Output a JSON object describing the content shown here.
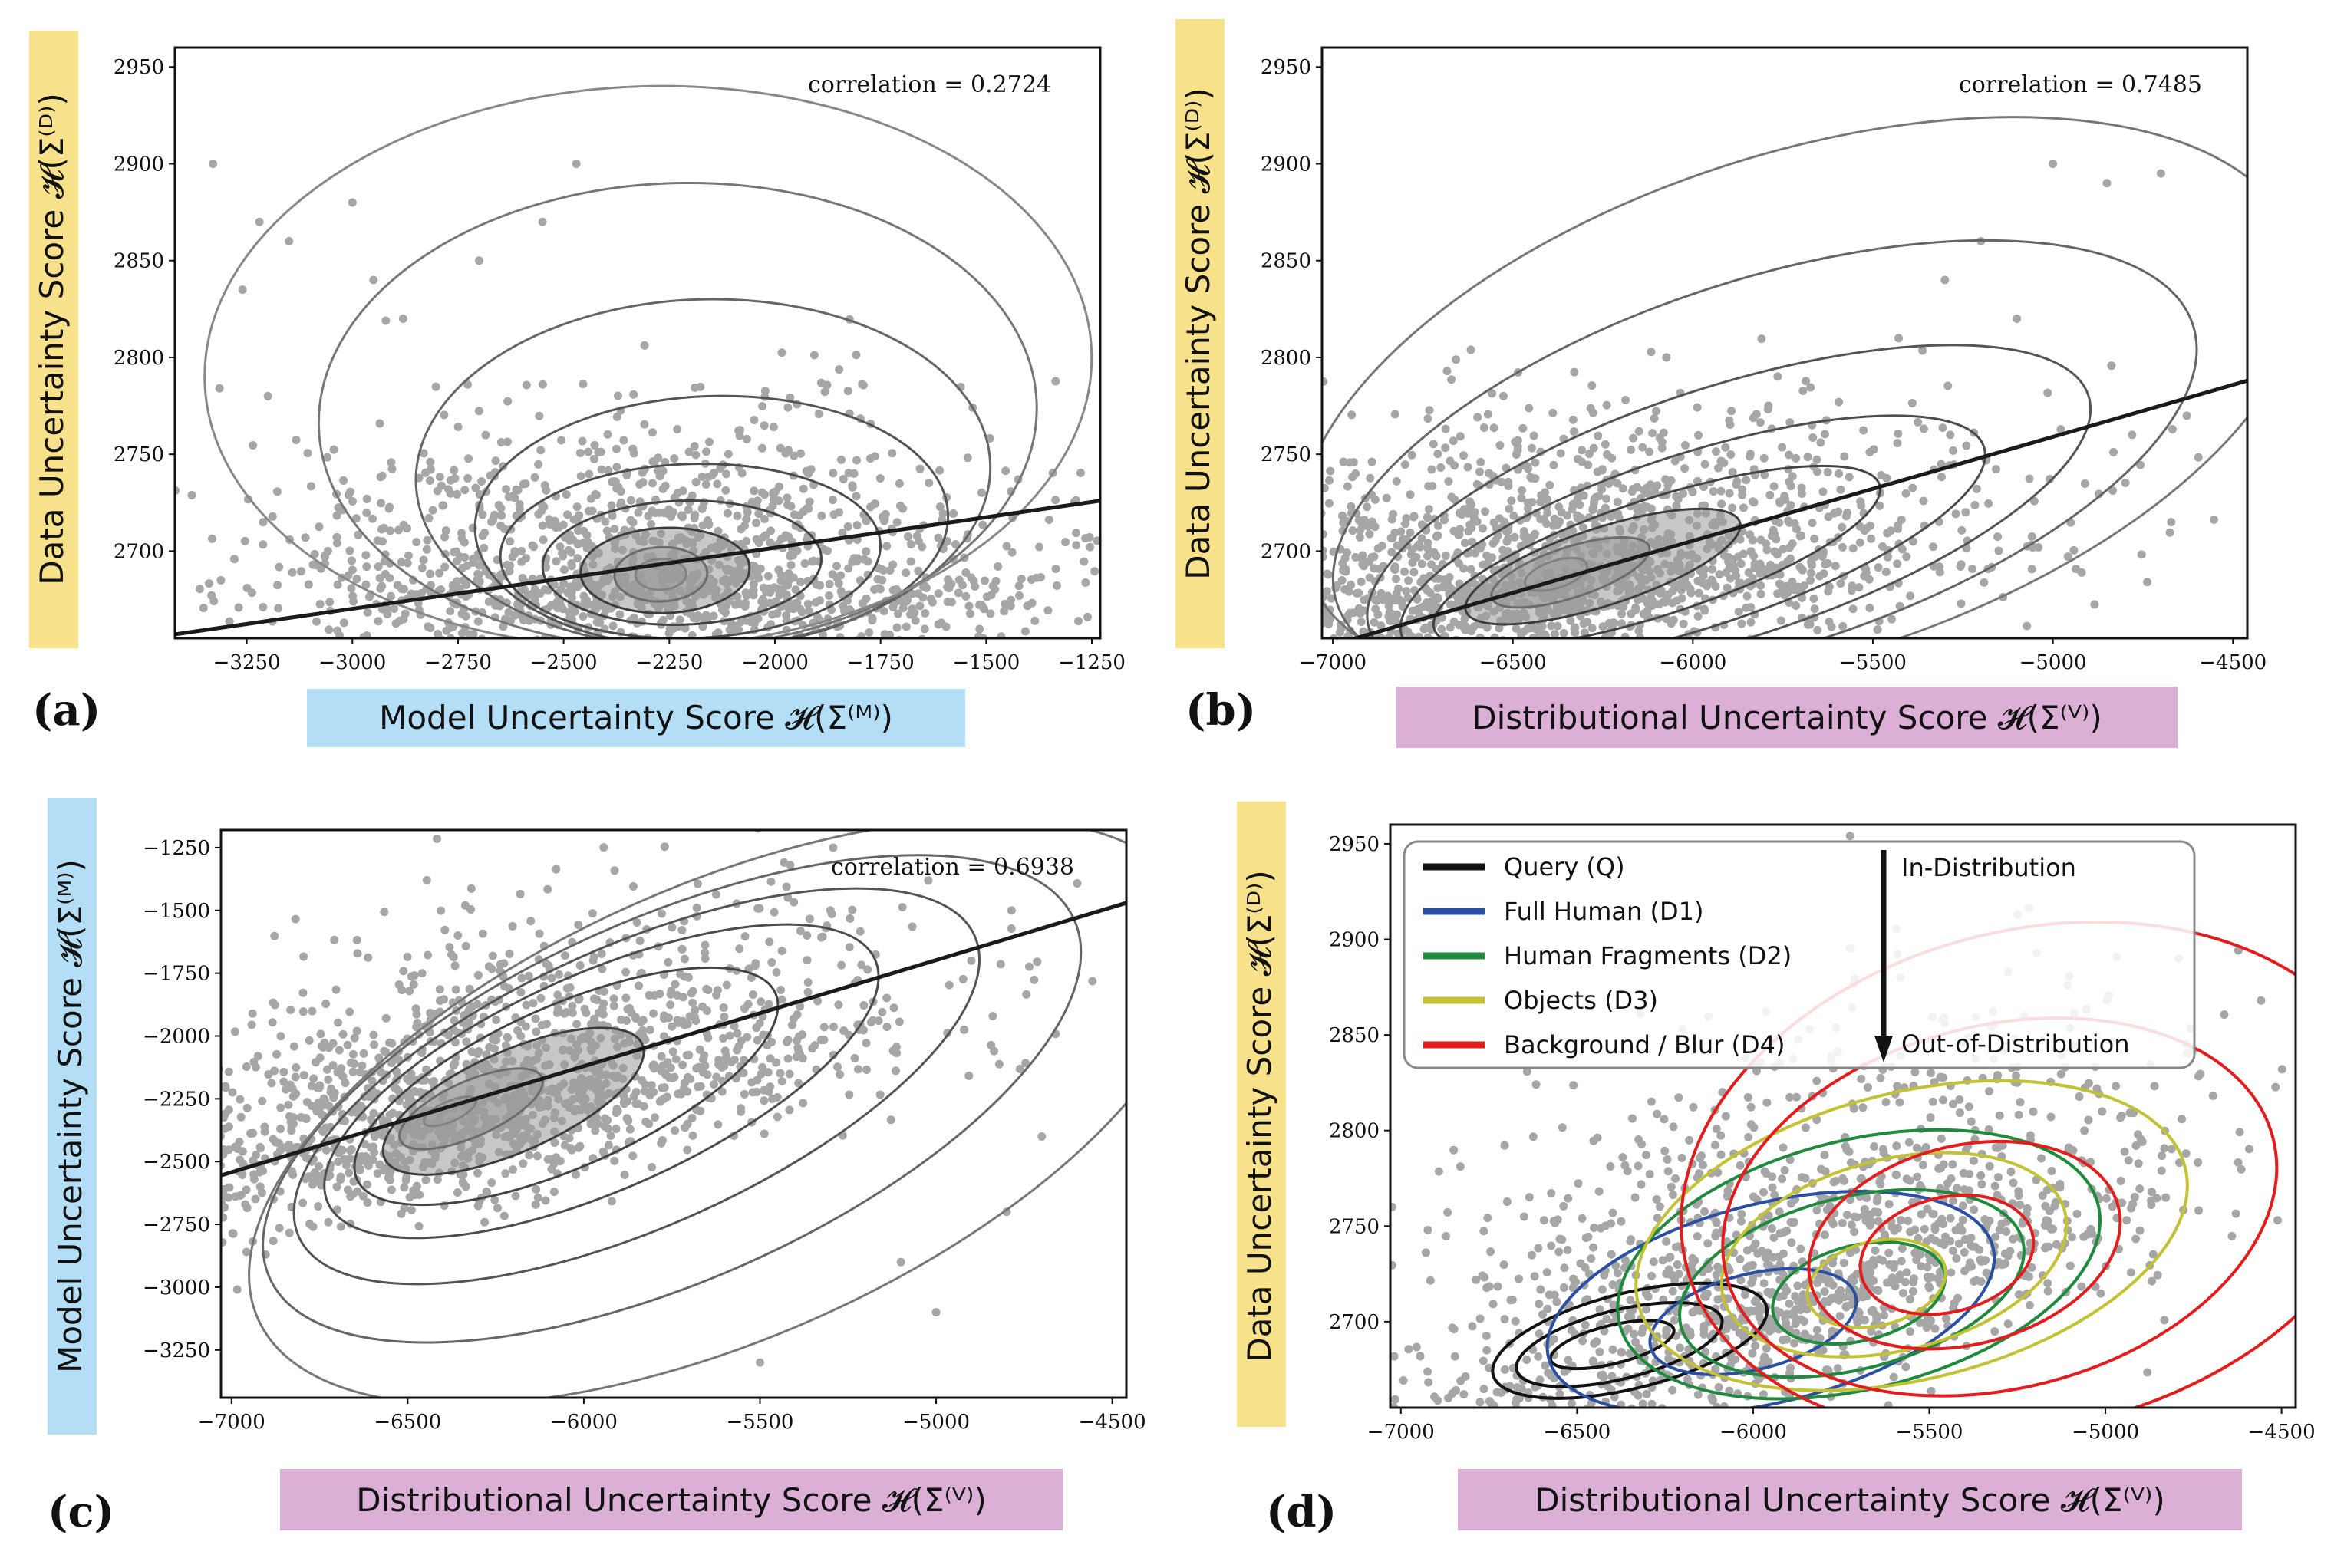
{
  "colors": {
    "model_highlight": "#b3def5",
    "data_highlight": "#f7e18a",
    "dist_highlight": "#dcb0d6",
    "points": "#a6a6a6",
    "fit_line": "#1a1a1a",
    "kde_fill": "#9b9b9b",
    "query": "#111111",
    "full_human": "#2b4fa3",
    "human_fragments": "#1f8a3c",
    "objects": "#c2c234",
    "background_blur": "#e31d1d",
    "background_blur_outer": "#f49a7a"
  },
  "panels": {
    "a": {
      "label": "(a)",
      "xlabel": "Model Uncertainty Score 𝓗(Σ⁽ᴹ⁾)",
      "ylabel": "Data Uncertainty Score 𝓗(Σ⁽ᴰ⁾)",
      "corr": "correlation = 0.2724"
    },
    "b": {
      "label": "(b)",
      "xlabel": "Distributional Uncertainty Score 𝓗(Σ⁽ⱽ⁾)",
      "ylabel": "Data Uncertainty Score 𝓗(Σ⁽ᴰ⁾)",
      "corr": "correlation = 0.7485"
    },
    "c": {
      "label": "(c)",
      "xlabel": "Distributional Uncertainty Score 𝓗(Σ⁽ⱽ⁾)",
      "ylabel": "Model Uncertainty Score 𝓗(Σ⁽ᴹ⁾)",
      "corr": "correlation = 0.6938"
    },
    "d": {
      "label": "(d)",
      "xlabel": "Distributional Uncertainty Score 𝓗(Σ⁽ⱽ⁾)",
      "ylabel": "Data Uncertainty Score 𝓗(Σ⁽ᴰ⁾)"
    }
  },
  "legend": {
    "items": [
      "Query (Q)",
      "Full Human (D1)",
      "Human Fragments (D2)",
      "Objects (D3)",
      "Background / Blur (D4)"
    ],
    "in_dist": "In-Distribution",
    "out_dist": "Out-of-Distribution"
  },
  "chart_data": [
    {
      "id": "a",
      "type": "scatter",
      "xlabel": "Model Uncertainty Score H(Σ(M))",
      "ylabel": "Data Uncertainty Score H(Σ(D))",
      "xlim": [
        -3420,
        -1230
      ],
      "ylim": [
        2655,
        2960
      ],
      "xticks": [
        -3250,
        -3000,
        -2750,
        -2500,
        -2250,
        -2000,
        -1750,
        -1500,
        -1250
      ],
      "yticks": [
        2700,
        2750,
        2800,
        2850,
        2900,
        2950
      ],
      "correlation": 0.2724,
      "fit_line": [
        [
          -3420,
          2657
        ],
        [
          -1230,
          2726
        ]
      ],
      "center": [
        -2270,
        2688
      ],
      "spread": [
        430,
        32
      ],
      "kde_levels": [
        {
          "cx": -2270,
          "cy": 2688,
          "rx": 60,
          "ry": 8
        },
        {
          "cx": -2270,
          "cy": 2688,
          "rx": 110,
          "ry": 14
        },
        {
          "cx": -2260,
          "cy": 2690,
          "rx": 200,
          "ry": 22
        },
        {
          "cx": -2220,
          "cy": 2694,
          "rx": 330,
          "ry": 32
        },
        {
          "cx": -2200,
          "cy": 2700,
          "rx": 450,
          "ry": 45
        },
        {
          "cx": -2150,
          "cy": 2715,
          "rx": 560,
          "ry": 65
        },
        {
          "cx": -2170,
          "cy": 2740,
          "rx": 680,
          "ry": 90
        },
        {
          "cx": -2230,
          "cy": 2770,
          "rx": 850,
          "ry": 120
        },
        {
          "cx": -2300,
          "cy": 2795,
          "rx": 1050,
          "ry": 145
        }
      ],
      "outliers": [
        [
          -3330,
          2900
        ],
        [
          -3220,
          2870
        ],
        [
          -3150,
          2860
        ],
        [
          -3000,
          2880
        ],
        [
          -3260,
          2835
        ],
        [
          -2950,
          2840
        ],
        [
          -3200,
          2780
        ],
        [
          -2550,
          2870
        ],
        [
          -2470,
          2900
        ],
        [
          -2700,
          2850
        ],
        [
          -2880,
          2820
        ]
      ]
    },
    {
      "id": "b",
      "type": "scatter",
      "xlabel": "Distributional Uncertainty Score H(Σ(V))",
      "ylabel": "Data Uncertainty Score H(Σ(D))",
      "xlim": [
        -7030,
        -4460
      ],
      "ylim": [
        2655,
        2960
      ],
      "xticks": [
        -7000,
        -6500,
        -6000,
        -5500,
        -5000,
        -4500
      ],
      "yticks": [
        2700,
        2750,
        2800,
        2850,
        2900,
        2950
      ],
      "correlation": 0.7485,
      "fit_line": [
        [
          -7030,
          2650
        ],
        [
          -4460,
          2788
        ]
      ],
      "center": [
        -6370,
        2688
      ],
      "spread": [
        520,
        34
      ],
      "kde_levels": [
        {
          "cx": -6380,
          "cy": 2688,
          "rx": 90,
          "ry": 7
        },
        {
          "cx": -6340,
          "cy": 2689,
          "rx": 230,
          "ry": 13
        },
        {
          "cx": -6250,
          "cy": 2692,
          "rx": 400,
          "ry": 20
        },
        {
          "cx": -6100,
          "cy": 2697,
          "rx": 650,
          "ry": 30
        },
        {
          "cx": -6000,
          "cy": 2705,
          "rx": 850,
          "ry": 45
        },
        {
          "cx": -5900,
          "cy": 2720,
          "rx": 1050,
          "ry": 65
        },
        {
          "cx": -5800,
          "cy": 2745,
          "rx": 1250,
          "ry": 95
        },
        {
          "cx": -5700,
          "cy": 2775,
          "rx": 1450,
          "ry": 130
        }
      ],
      "outliers": [
        [
          -5000,
          2900
        ],
        [
          -4850,
          2890
        ],
        [
          -5200,
          2860
        ],
        [
          -4700,
          2895
        ],
        [
          -5100,
          2820
        ],
        [
          -4780,
          2760
        ],
        [
          -5300,
          2840
        ]
      ]
    },
    {
      "id": "c",
      "type": "scatter",
      "xlabel": "Distributional Uncertainty Score H(Σ(V))",
      "ylabel": "Model Uncertainty Score H(Σ(M))",
      "xlim": [
        -7030,
        -4460
      ],
      "ylim": [
        -3440,
        -1180
      ],
      "xticks": [
        -7000,
        -6500,
        -6000,
        -5500,
        -5000,
        -4500
      ],
      "yticks": [
        -3250,
        -3000,
        -2750,
        -2500,
        -2250,
        -2000,
        -1750,
        -1500,
        -1250
      ],
      "correlation": 0.6938,
      "fit_line": [
        [
          -7030,
          -2555
        ],
        [
          -4460,
          -1470
        ]
      ],
      "center": [
        -6250,
        -2250
      ],
      "spread": [
        520,
        300
      ],
      "kde_levels": [
        {
          "cx": -6380,
          "cy": -2300,
          "rx": 80,
          "ry": 40
        },
        {
          "cx": -6320,
          "cy": -2290,
          "rx": 220,
          "ry": 110
        },
        {
          "cx": -6200,
          "cy": -2260,
          "rx": 400,
          "ry": 200
        },
        {
          "cx": -6050,
          "cy": -2200,
          "rx": 650,
          "ry": 320
        },
        {
          "cx": -5950,
          "cy": -2180,
          "rx": 850,
          "ry": 430
        },
        {
          "cx": -5850,
          "cy": -2200,
          "rx": 1050,
          "ry": 560
        },
        {
          "cx": -5750,
          "cy": -2250,
          "rx": 1250,
          "ry": 720
        },
        {
          "cx": -5600,
          "cy": -2300,
          "rx": 1450,
          "ry": 900
        }
      ],
      "outliers": [
        [
          -5100,
          -2900
        ],
        [
          -5000,
          -3100
        ],
        [
          -4800,
          -2700
        ],
        [
          -5300,
          -1500
        ],
        [
          -4700,
          -2400
        ],
        [
          -5500,
          -3300
        ],
        [
          -4900,
          -1700
        ]
      ]
    },
    {
      "id": "d",
      "type": "scatter",
      "xlabel": "Distributional Uncertainty Score H(Σ(V))",
      "ylabel": "Data Uncertainty Score H(Σ(D))",
      "xlim": [
        -7030,
        -4460
      ],
      "ylim": [
        2655,
        2960
      ],
      "xticks": [
        -7000,
        -6500,
        -6000,
        -5500,
        -5000,
        -4500
      ],
      "yticks": [
        2700,
        2750,
        2800,
        2850,
        2900,
        2950
      ],
      "center": [
        -5900,
        2720
      ],
      "spread": [
        550,
        55
      ],
      "series": [
        {
          "name": "Query (Q)",
          "color": "#111111",
          "contours": [
            {
              "cx": -6400,
              "cy": 2688,
              "rx": 180,
              "ry": 10
            },
            {
              "cx": -6380,
              "cy": 2688,
              "rx": 300,
              "ry": 18
            },
            {
              "cx": -6350,
              "cy": 2690,
              "rx": 400,
              "ry": 25
            }
          ]
        },
        {
          "name": "Full Human (D1)",
          "color": "#2b4fa3",
          "contours": [
            {
              "cx": -6000,
              "cy": 2700,
              "rx": 300,
              "ry": 25
            },
            {
              "cx": -5950,
              "cy": 2710,
              "rx": 650,
              "ry": 52
            }
          ]
        },
        {
          "name": "Human Fragments (D2)",
          "color": "#1f8a3c",
          "contours": [
            {
              "cx": -5700,
              "cy": 2715,
              "rx": 250,
              "ry": 25
            },
            {
              "cx": -5720,
              "cy": 2720,
              "rx": 500,
              "ry": 45
            },
            {
              "cx": -5700,
              "cy": 2730,
              "rx": 700,
              "ry": 65
            }
          ]
        },
        {
          "name": "Objects (D3)",
          "color": "#c2c234",
          "contours": [
            {
              "cx": -5650,
              "cy": 2720,
              "rx": 200,
              "ry": 22
            },
            {
              "cx": -5600,
              "cy": 2735,
              "rx": 500,
              "ry": 50
            },
            {
              "cx": -5550,
              "cy": 2745,
              "rx": 800,
              "ry": 75
            }
          ]
        },
        {
          "name": "Background / Blur (D4)",
          "color": "#e31d1d",
          "contours": [
            {
              "cx": -5450,
              "cy": 2735,
              "rx": 250,
              "ry": 30
            },
            {
              "cx": -5400,
              "cy": 2740,
              "rx": 450,
              "ry": 52
            },
            {
              "cx": -5300,
              "cy": 2760,
              "rx": 800,
              "ry": 95
            },
            {
              "cx": -5200,
              "cy": 2775,
              "rx": 1020,
              "ry": 130
            }
          ]
        }
      ]
    }
  ]
}
